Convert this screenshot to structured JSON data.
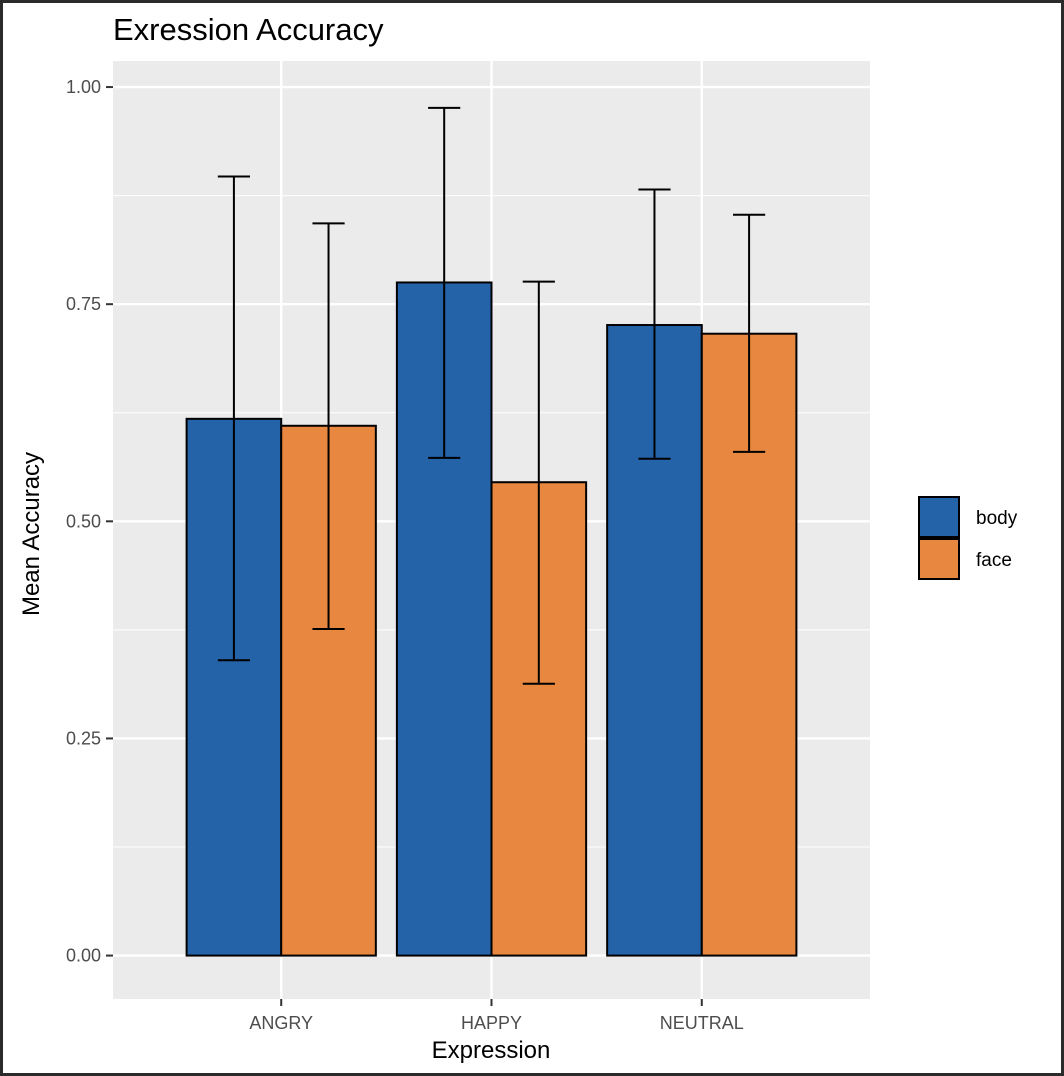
{
  "chart_data": {
    "type": "bar",
    "title": "Exression Accuracy",
    "xlabel": "Expression",
    "ylabel": "Mean Accuracy",
    "categories": [
      "ANGRY",
      "HAPPY",
      "NEUTRAL"
    ],
    "series": [
      {
        "name": "body",
        "color": "#2563a9",
        "values": [
          0.618,
          0.775,
          0.726
        ],
        "error_low": [
          0.34,
          0.573,
          0.572
        ],
        "error_high": [
          0.897,
          0.976,
          0.882
        ]
      },
      {
        "name": "face",
        "color": "#e8873f",
        "values": [
          0.61,
          0.545,
          0.716
        ],
        "error_low": [
          0.376,
          0.313,
          0.58
        ],
        "error_high": [
          0.843,
          0.776,
          0.853
        ]
      }
    ],
    "ylim": [
      -0.05,
      1.03
    ],
    "yticks": [
      0,
      0.25,
      0.5,
      0.75,
      1
    ],
    "ytick_labels": [
      "0.00",
      "0.25",
      "0.50",
      "0.75",
      "1.00"
    ],
    "grid": true,
    "legend": "right",
    "panel_color": "#ebebeb"
  }
}
